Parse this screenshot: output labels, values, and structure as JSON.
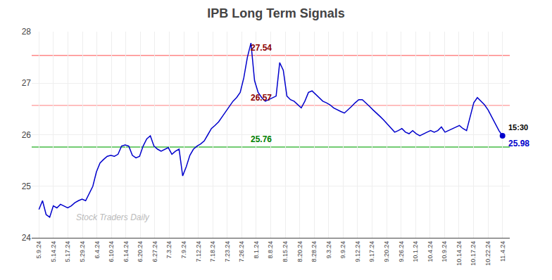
{
  "chart_data": {
    "type": "line",
    "title": "IPB Long Term Signals",
    "color": "#0000cc",
    "grid": true,
    "xlim": [
      -2.015625,
      131.015625
    ],
    "xticks": [
      {
        "value": 0,
        "label": "5.9.24"
      },
      {
        "value": 4.03125,
        "label": "5.14.24"
      },
      {
        "value": 8.0625,
        "label": "5.17.24"
      },
      {
        "value": 12.09375,
        "label": "5.29.24"
      },
      {
        "value": 16.125,
        "label": "6.4.24"
      },
      {
        "value": 20.15625,
        "label": "6.10.24"
      },
      {
        "value": 24.1875,
        "label": "6.14.24"
      },
      {
        "value": 28.21875,
        "label": "6.20.24"
      },
      {
        "value": 32.25,
        "label": "6.27.24"
      },
      {
        "value": 36.28125,
        "label": "7.3.24"
      },
      {
        "value": 40.3125,
        "label": "7.9.24"
      },
      {
        "value": 44.34375,
        "label": "7.12.24"
      },
      {
        "value": 48.375,
        "label": "7.18.24"
      },
      {
        "value": 52.40625,
        "label": "7.23.24"
      },
      {
        "value": 56.4375,
        "label": "7.26.24"
      },
      {
        "value": 60.46875,
        "label": "8.1.24"
      },
      {
        "value": 64.5,
        "label": "8.8.24"
      },
      {
        "value": 68.53125,
        "label": "8.15.24"
      },
      {
        "value": 72.5625,
        "label": "8.20.24"
      },
      {
        "value": 76.59375,
        "label": "8.28.24"
      },
      {
        "value": 80.625,
        "label": "9.3.24"
      },
      {
        "value": 84.65625,
        "label": "9.9.24"
      },
      {
        "value": 88.6875,
        "label": "9.12.24"
      },
      {
        "value": 92.71875,
        "label": "9.17.24"
      },
      {
        "value": 96.75,
        "label": "9.20.24"
      },
      {
        "value": 100.78125,
        "label": "9.26.24"
      },
      {
        "value": 104.8125,
        "label": "10.1.24"
      },
      {
        "value": 108.84375,
        "label": "10.4.24"
      },
      {
        "value": 112.875,
        "label": "10.9.24"
      },
      {
        "value": 116.90625,
        "label": "10.14.24"
      },
      {
        "value": 120.9375,
        "label": "10.17.24"
      },
      {
        "value": 124.96875,
        "label": "10.22.24"
      },
      {
        "value": 129,
        "label": "11.4.24"
      }
    ],
    "ylim": [
      24.0,
      28.0
    ],
    "yticks": [
      24,
      25,
      26,
      27,
      28
    ],
    "values": [
      24.55,
      24.72,
      24.45,
      24.4,
      24.62,
      24.58,
      24.65,
      24.62,
      24.58,
      24.62,
      24.68,
      24.72,
      24.75,
      24.72,
      24.85,
      25.0,
      25.28,
      25.45,
      25.52,
      25.58,
      25.6,
      25.58,
      25.62,
      25.78,
      25.8,
      25.78,
      25.6,
      25.55,
      25.58,
      25.78,
      25.92,
      25.98,
      25.78,
      25.72,
      25.68,
      25.72,
      25.75,
      25.62,
      25.68,
      25.72,
      25.2,
      25.38,
      25.6,
      25.72,
      25.78,
      25.82,
      25.88,
      26.0,
      26.12,
      26.18,
      26.25,
      26.35,
      26.45,
      26.55,
      26.65,
      26.72,
      26.82,
      27.1,
      27.5,
      27.78,
      27.05,
      26.82,
      26.72,
      26.65,
      26.68,
      26.72,
      26.75,
      27.4,
      27.25,
      26.75,
      26.68,
      26.65,
      26.58,
      26.52,
      26.65,
      26.82,
      26.85,
      26.78,
      26.72,
      26.65,
      26.62,
      26.58,
      26.52,
      26.48,
      26.45,
      26.42,
      26.48,
      26.55,
      26.62,
      26.68,
      26.68,
      26.62,
      26.55,
      26.48,
      26.42,
      26.35,
      26.28,
      26.2,
      26.12,
      26.05,
      26.08,
      26.12,
      26.05,
      26.02,
      26.08,
      26.02,
      25.98,
      26.02,
      26.05,
      26.08,
      26.05,
      26.08,
      26.15,
      26.05,
      26.08,
      26.12,
      26.15,
      26.18,
      26.12,
      26.08,
      26.35,
      26.62,
      26.72,
      26.65,
      26.58,
      26.48,
      26.35,
      26.22,
      26.08,
      25.98
    ],
    "reference_lines": [
      {
        "y": 27.54,
        "color": "#ff8888",
        "label": "27.54",
        "label_color": "darkred"
      },
      {
        "y": 26.57,
        "color": "#ffaaaa",
        "label": "26.57",
        "label_color": "darkred"
      },
      {
        "y": 25.76,
        "color": "#44bb44",
        "label": "25.76",
        "label_color": "green"
      }
    ],
    "end_marker": {
      "y": 25.98,
      "marker": "circle",
      "time": "15:30",
      "label": "25.98"
    },
    "watermark": "Stock Traders Daily"
  }
}
